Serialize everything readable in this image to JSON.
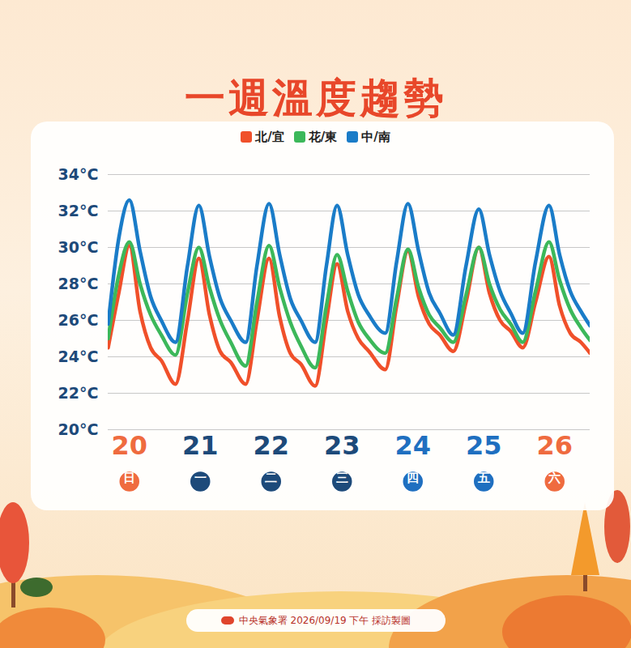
{
  "chart_data": {
    "type": "line",
    "title": "一週溫度趨勢",
    "caption": "中央氣象署 2026/09/19 下午 採訪製圖",
    "x": [
      19.7,
      19.85,
      20.0,
      20.15,
      20.3,
      20.45,
      20.65,
      20.82,
      20.98,
      21.13,
      21.28,
      21.43,
      21.64,
      21.8,
      21.97,
      22.12,
      22.27,
      22.42,
      22.62,
      22.78,
      22.93,
      23.08,
      23.23,
      23.38,
      23.61,
      23.77,
      23.93,
      24.08,
      24.23,
      24.38,
      24.57,
      24.75,
      24.93,
      25.08,
      25.23,
      25.38,
      25.55,
      25.73,
      25.92,
      26.07,
      26.22,
      26.37,
      26.5
    ],
    "xlim": [
      19.7,
      26.5
    ],
    "xticks": [
      20,
      21,
      22,
      23,
      24,
      25,
      26
    ],
    "xtick_sublabels": [
      "日",
      "一",
      "二",
      "三",
      "四",
      "五",
      "六"
    ],
    "ylim": [
      20,
      34
    ],
    "yticks": [
      {
        "value": 20,
        "label": "20°C"
      },
      {
        "value": 22,
        "label": "22°C"
      },
      {
        "value": 24,
        "label": "24°C"
      },
      {
        "value": 26,
        "label": "26°C"
      },
      {
        "value": 28,
        "label": "28°C"
      },
      {
        "value": 30,
        "label": "30°C"
      },
      {
        "value": 32,
        "label": "32°C"
      },
      {
        "value": 34,
        "label": "34°C"
      }
    ],
    "grid": true,
    "legend": "top",
    "series": [
      {
        "name": "北/宜",
        "color": "#f0502a",
        "values": [
          24.5,
          27.5,
          30.1,
          26.5,
          24.5,
          23.8,
          22.5,
          26.0,
          29.4,
          26.3,
          24.3,
          23.7,
          22.5,
          26.0,
          29.4,
          26.2,
          24.2,
          23.6,
          22.4,
          26.0,
          29.1,
          26.5,
          25.0,
          24.3,
          23.3,
          26.8,
          29.8,
          27.3,
          25.8,
          25.2,
          24.3,
          27.0,
          30.0,
          27.5,
          26.0,
          25.4,
          24.5,
          27.0,
          29.5,
          26.8,
          25.3,
          24.8,
          24.2
        ]
      },
      {
        "name": "花/東",
        "color": "#3cb85a",
        "values": [
          25.0,
          28.5,
          30.3,
          28.0,
          26.3,
          25.2,
          24.1,
          27.5,
          30.0,
          27.8,
          26.0,
          24.8,
          23.5,
          27.0,
          30.1,
          27.8,
          25.9,
          24.6,
          23.4,
          26.8,
          29.6,
          27.6,
          25.9,
          25.0,
          24.2,
          27.2,
          29.9,
          27.8,
          26.3,
          25.6,
          24.8,
          27.4,
          30.0,
          28.0,
          26.6,
          25.8,
          24.8,
          27.6,
          30.3,
          28.2,
          26.6,
          25.6,
          24.9
        ]
      },
      {
        "name": "中/南",
        "color": "#1a7cc8",
        "values": [
          25.8,
          30.5,
          32.6,
          29.8,
          27.3,
          26.0,
          24.8,
          29.0,
          32.3,
          29.5,
          27.2,
          26.0,
          24.8,
          29.0,
          32.4,
          29.6,
          27.2,
          26.0,
          24.8,
          29.0,
          32.3,
          29.6,
          27.4,
          26.3,
          25.3,
          29.2,
          32.4,
          29.8,
          27.5,
          26.4,
          25.2,
          29.0,
          32.1,
          29.6,
          27.6,
          26.4,
          25.3,
          29.2,
          32.3,
          29.6,
          27.6,
          26.5,
          25.7
        ]
      }
    ]
  }
}
